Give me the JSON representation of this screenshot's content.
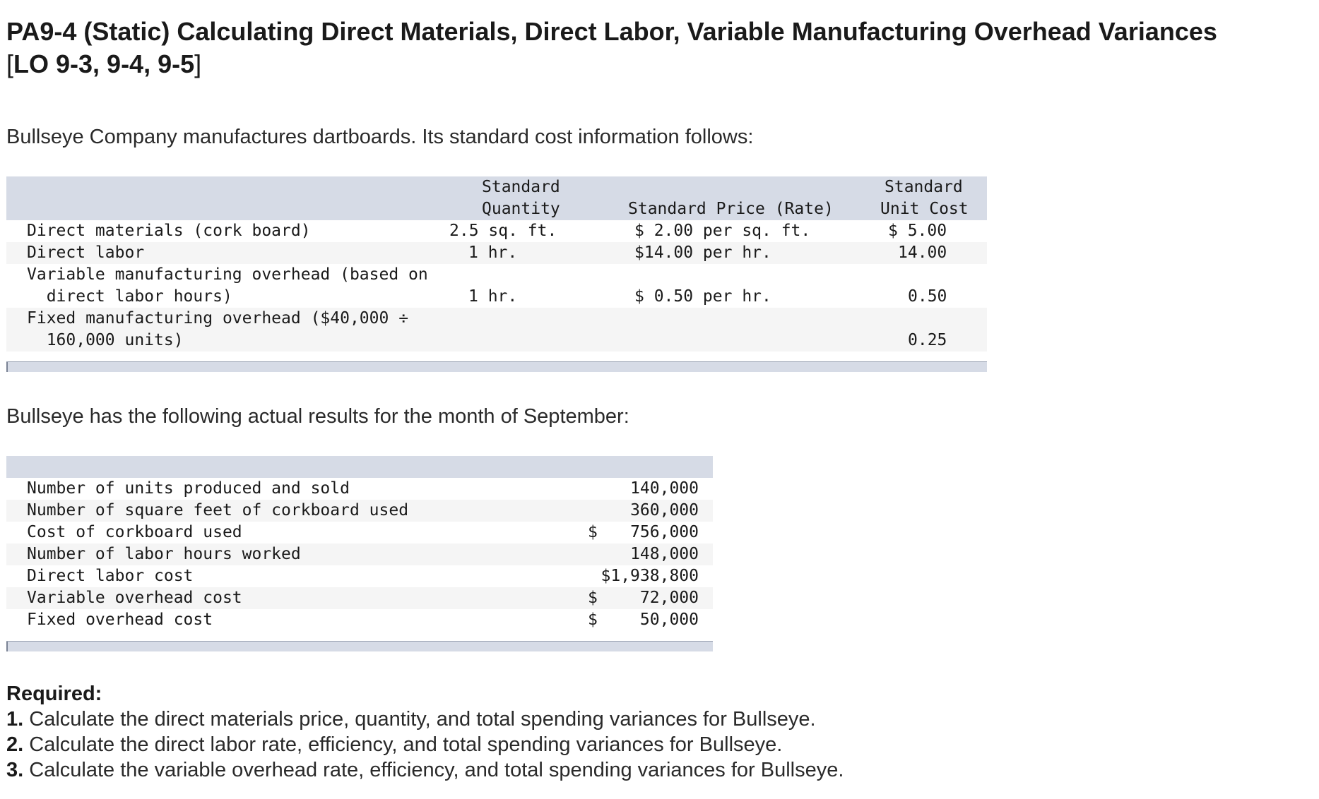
{
  "title": {
    "line1": "PA9-4 (Static) Calculating Direct Materials, Direct Labor, Variable Manufacturing Overhead Variances",
    "bracket_open": "[",
    "line2_code": "LO 9-3, 9-4, 9-5",
    "bracket_close": "]"
  },
  "intro": "Bullseye Company manufactures dartboards. Its standard cost information follows:",
  "standards": {
    "headers": {
      "quantity_line1": "Standard",
      "quantity_line2": "Quantity",
      "price": "Standard Price (Rate)",
      "unit_cost_line1": "Standard",
      "unit_cost_line2": "Unit Cost"
    },
    "rows": [
      {
        "label": "Direct materials (cork board)",
        "quantity": "2.5 sq. ft.",
        "price": "$ 2.00 per sq. ft.",
        "unit_cost": "$ 5.00"
      },
      {
        "label": "Direct labor",
        "quantity": "1 hr.",
        "price": "$14.00 per hr.",
        "unit_cost": "14.00"
      },
      {
        "label": "Variable manufacturing overhead (based on",
        "label_cont": "  direct labor hours)",
        "quantity": "1 hr.",
        "price": "$ 0.50 per hr.",
        "unit_cost": "0.50"
      },
      {
        "label": "Fixed manufacturing overhead ($40,000 ÷",
        "label_cont": "  160,000 units)",
        "unit_cost": "0.25"
      }
    ]
  },
  "actual_intro": "Bullseye has the following actual results for the month of September:",
  "actuals": {
    "rows": [
      {
        "label": "Number of units produced and sold",
        "dollar": "",
        "value": "140,000"
      },
      {
        "label": "Number of square feet of corkboard used",
        "dollar": "",
        "value": "360,000"
      },
      {
        "label": "Cost of corkboard used",
        "dollar": "$",
        "value": "756,000"
      },
      {
        "label": "Number of labor hours worked",
        "dollar": "",
        "value": "148,000"
      },
      {
        "label": "Direct labor cost",
        "dollar": "",
        "value": "$1,938,800"
      },
      {
        "label": "Variable overhead cost",
        "dollar": "$",
        "value": "72,000"
      },
      {
        "label": "Fixed overhead cost",
        "dollar": "$",
        "value": "50,000"
      }
    ]
  },
  "required": {
    "label": "Required:",
    "items": [
      {
        "num": "1.",
        "text": " Calculate the direct materials price, quantity, and total spending variances for Bullseye."
      },
      {
        "num": "2.",
        "text": " Calculate the direct labor rate, efficiency, and total spending variances for Bullseye."
      },
      {
        "num": "3.",
        "text": " Calculate the variable overhead rate, efficiency, and total spending variances for Bullseye."
      }
    ]
  }
}
